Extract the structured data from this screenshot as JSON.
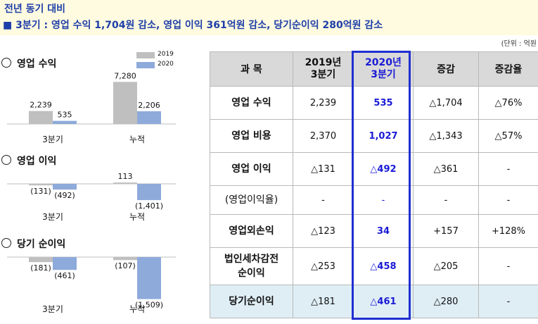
{
  "header": {
    "title": "전년 동기 대비",
    "subtitle": "■ 3분기 : 영업 수익  1,704원 감소,  영업 이익 361억원 감소,  당기순이익  280억원 감소"
  },
  "unit_note": "(단위 : 억원",
  "legend": [
    {
      "label": "2019",
      "color": "#bfbfbf"
    },
    {
      "label": "2020",
      "color": "#8eaadb"
    }
  ],
  "chart_data": [
    {
      "type": "bar",
      "title": "영업 수익",
      "categories": [
        "3분기",
        "누적"
      ],
      "series": [
        {
          "name": "2019",
          "values": [
            2239,
            7280
          ],
          "labels": [
            "2,239",
            "7,280"
          ]
        },
        {
          "name": "2020",
          "values": [
            535,
            2206
          ],
          "labels": [
            "535",
            "2,206"
          ]
        }
      ]
    },
    {
      "type": "bar",
      "title": "영업 이익",
      "categories": [
        "3분기",
        "누적"
      ],
      "series": [
        {
          "name": "2019",
          "values": [
            -131,
            113
          ],
          "labels": [
            "(131)",
            "113"
          ]
        },
        {
          "name": "2020",
          "values": [
            -492,
            -1401
          ],
          "labels": [
            "(492)",
            "(1,401)"
          ]
        }
      ]
    },
    {
      "type": "bar",
      "title": "당기 순이익",
      "categories": [
        "3분기",
        "누적"
      ],
      "series": [
        {
          "name": "2019",
          "values": [
            -181,
            -107
          ],
          "labels": [
            "(181)",
            "(107)"
          ]
        },
        {
          "name": "2020",
          "values": [
            -461,
            -1509
          ],
          "labels": [
            "(461)",
            "(1,509)"
          ]
        }
      ]
    }
  ],
  "table": {
    "headers": [
      "과 목",
      "2019년\n3분기",
      "2020년\n3분기",
      "증감",
      "증감율"
    ],
    "rows": [
      {
        "item": "영업 수익",
        "y2019": "2,239",
        "y2020": "535",
        "change": "△1,704",
        "rate": "△76%"
      },
      {
        "item": "영업 비용",
        "y2019": "2,370",
        "y2020": "1,027",
        "change": "△1,343",
        "rate": "△57%"
      },
      {
        "item": "영업 이익",
        "y2019": "△131",
        "y2020": "△492",
        "change": "△361",
        "rate": "-"
      },
      {
        "item": "(영업이익율)",
        "y2019": "-",
        "y2020": "-",
        "change": "-",
        "rate": "-"
      },
      {
        "item": "영업외손익",
        "y2019": "△123",
        "y2020": "34",
        "change": "+157",
        "rate": "+128%"
      },
      {
        "item": "법인세차감전\n순이익",
        "y2019": "△253",
        "y2020": "△458",
        "change": "△205",
        "rate": "-"
      },
      {
        "item": "당기순이익",
        "y2019": "△181",
        "y2020": "△461",
        "change": "△280",
        "rate": "-"
      }
    ]
  }
}
